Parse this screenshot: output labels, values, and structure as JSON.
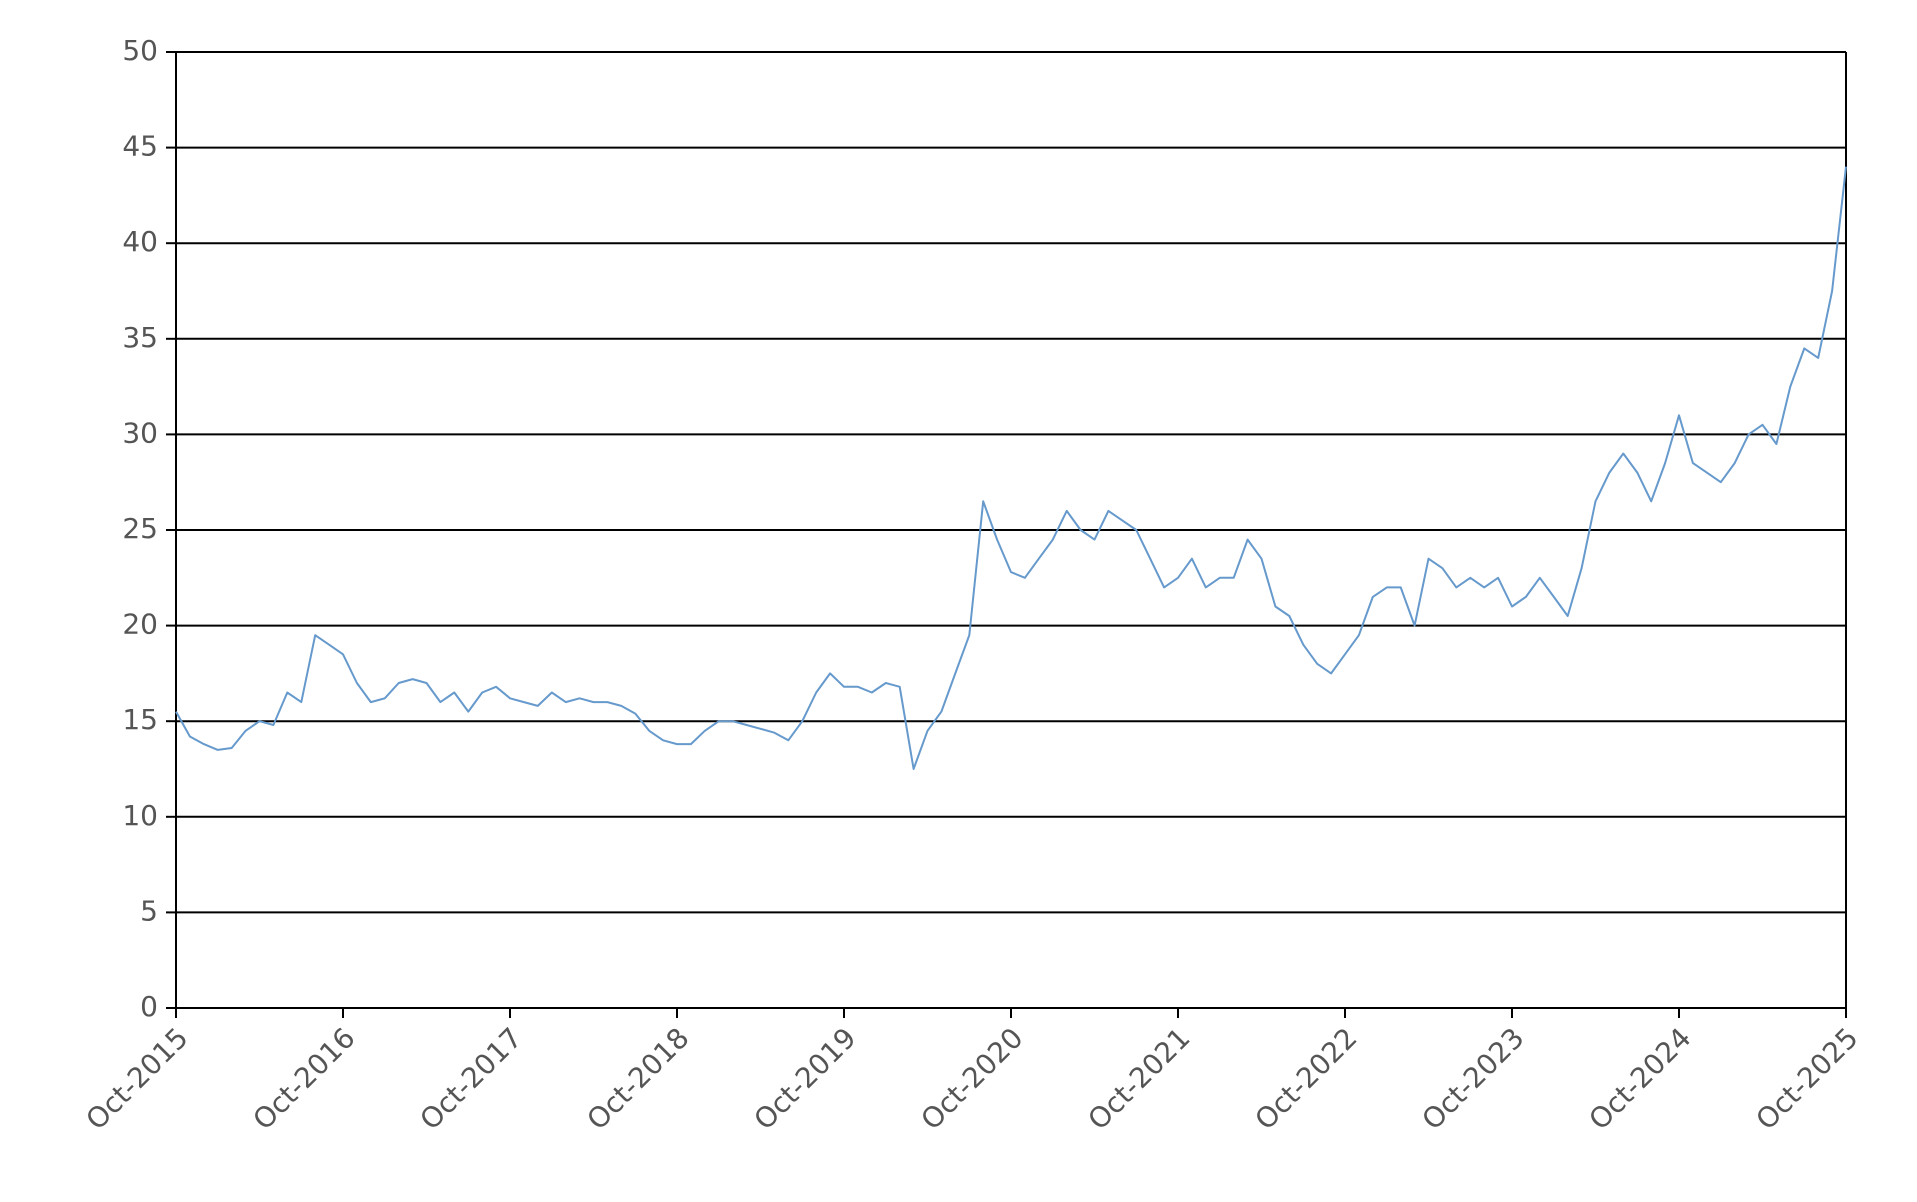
{
  "chart_data": {
    "type": "line",
    "x": [
      "2015-10",
      "2015-11",
      "2015-12",
      "2016-01",
      "2016-02",
      "2016-03",
      "2016-04",
      "2016-05",
      "2016-06",
      "2016-07",
      "2016-08",
      "2016-09",
      "2016-10",
      "2016-11",
      "2016-12",
      "2017-01",
      "2017-02",
      "2017-03",
      "2017-04",
      "2017-05",
      "2017-06",
      "2017-07",
      "2017-08",
      "2017-09",
      "2017-10",
      "2017-11",
      "2017-12",
      "2018-01",
      "2018-02",
      "2018-03",
      "2018-04",
      "2018-05",
      "2018-06",
      "2018-07",
      "2018-08",
      "2018-09",
      "2018-10",
      "2018-11",
      "2018-12",
      "2019-01",
      "2019-02",
      "2019-03",
      "2019-04",
      "2019-05",
      "2019-06",
      "2019-07",
      "2019-08",
      "2019-09",
      "2019-10",
      "2019-11",
      "2019-12",
      "2020-01",
      "2020-02",
      "2020-03",
      "2020-04",
      "2020-05",
      "2020-06",
      "2020-07",
      "2020-08",
      "2020-09",
      "2020-10",
      "2020-11",
      "2020-12",
      "2021-01",
      "2021-02",
      "2021-03",
      "2021-04",
      "2021-05",
      "2021-06",
      "2021-07",
      "2021-08",
      "2021-09",
      "2021-10",
      "2021-11",
      "2021-12",
      "2022-01",
      "2022-02",
      "2022-03",
      "2022-04",
      "2022-05",
      "2022-06",
      "2022-07",
      "2022-08",
      "2022-09",
      "2022-10",
      "2022-11",
      "2022-12",
      "2023-01",
      "2023-02",
      "2023-03",
      "2023-04",
      "2023-05",
      "2023-06",
      "2023-07",
      "2023-08",
      "2023-09",
      "2023-10",
      "2023-11",
      "2023-12",
      "2024-01",
      "2024-02",
      "2024-03",
      "2024-04",
      "2024-05",
      "2024-06",
      "2024-07",
      "2024-08",
      "2024-09",
      "2024-10",
      "2024-11",
      "2024-12",
      "2025-01",
      "2025-02",
      "2025-03",
      "2025-04",
      "2025-05",
      "2025-06",
      "2025-07",
      "2025-08",
      "2025-09",
      "2025-10"
    ],
    "series": [
      {
        "color": "#6699cc",
        "values": [
          15.5,
          14.2,
          13.8,
          13.5,
          13.6,
          14.5,
          15.0,
          14.8,
          16.5,
          16.0,
          19.5,
          19.0,
          18.5,
          17.0,
          16.0,
          16.2,
          17.0,
          17.2,
          17.0,
          16.0,
          16.5,
          15.5,
          16.5,
          16.8,
          16.2,
          16.0,
          15.8,
          16.5,
          16.0,
          16.2,
          16.0,
          16.0,
          15.8,
          15.4,
          14.5,
          14.0,
          13.8,
          13.8,
          14.5,
          15.0,
          15.0,
          14.8,
          14.6,
          14.4,
          14.0,
          15.0,
          16.5,
          17.5,
          16.8,
          16.8,
          16.5,
          17.0,
          16.8,
          12.5,
          14.5,
          15.5,
          17.5,
          19.5,
          26.5,
          24.5,
          22.8,
          22.5,
          23.5,
          24.5,
          26.0,
          25.0,
          24.5,
          26.0,
          25.5,
          25.0,
          23.5,
          22.0,
          22.5,
          23.5,
          22.0,
          22.5,
          22.5,
          24.5,
          23.5,
          21.0,
          20.5,
          19.0,
          18.0,
          17.5,
          18.5,
          19.5,
          21.5,
          22.0,
          22.0,
          20.0,
          23.5,
          23.0,
          22.0,
          22.5,
          22.0,
          22.5,
          21.0,
          21.5,
          22.5,
          21.5,
          20.5,
          23.0,
          26.5,
          28.0,
          29.0,
          28.0,
          26.5,
          28.5,
          31.0,
          28.5,
          28.0,
          27.5,
          28.5,
          30.0,
          30.5,
          29.5,
          32.5,
          34.5,
          34.0,
          37.5,
          44.0
        ]
      }
    ],
    "xlim": [
      "2015-10",
      "2025-10"
    ],
    "xticks": [
      {
        "value": "2015-10",
        "label": "Oct-2015"
      },
      {
        "value": "2016-10",
        "label": "Oct-2016"
      },
      {
        "value": "2017-10",
        "label": "Oct-2017"
      },
      {
        "value": "2018-10",
        "label": "Oct-2018"
      },
      {
        "value": "2019-10",
        "label": "Oct-2019"
      },
      {
        "value": "2020-10",
        "label": "Oct-2020"
      },
      {
        "value": "2021-10",
        "label": "Oct-2021"
      },
      {
        "value": "2022-10",
        "label": "Oct-2022"
      },
      {
        "value": "2023-10",
        "label": "Oct-2023"
      },
      {
        "value": "2024-10",
        "label": "Oct-2024"
      },
      {
        "value": "2025-10",
        "label": "Oct-2025"
      }
    ],
    "ylim": [
      0,
      50
    ],
    "yticks": [
      0,
      5,
      10,
      15,
      20,
      25,
      30,
      35,
      40,
      45,
      50
    ],
    "grid": true
  }
}
